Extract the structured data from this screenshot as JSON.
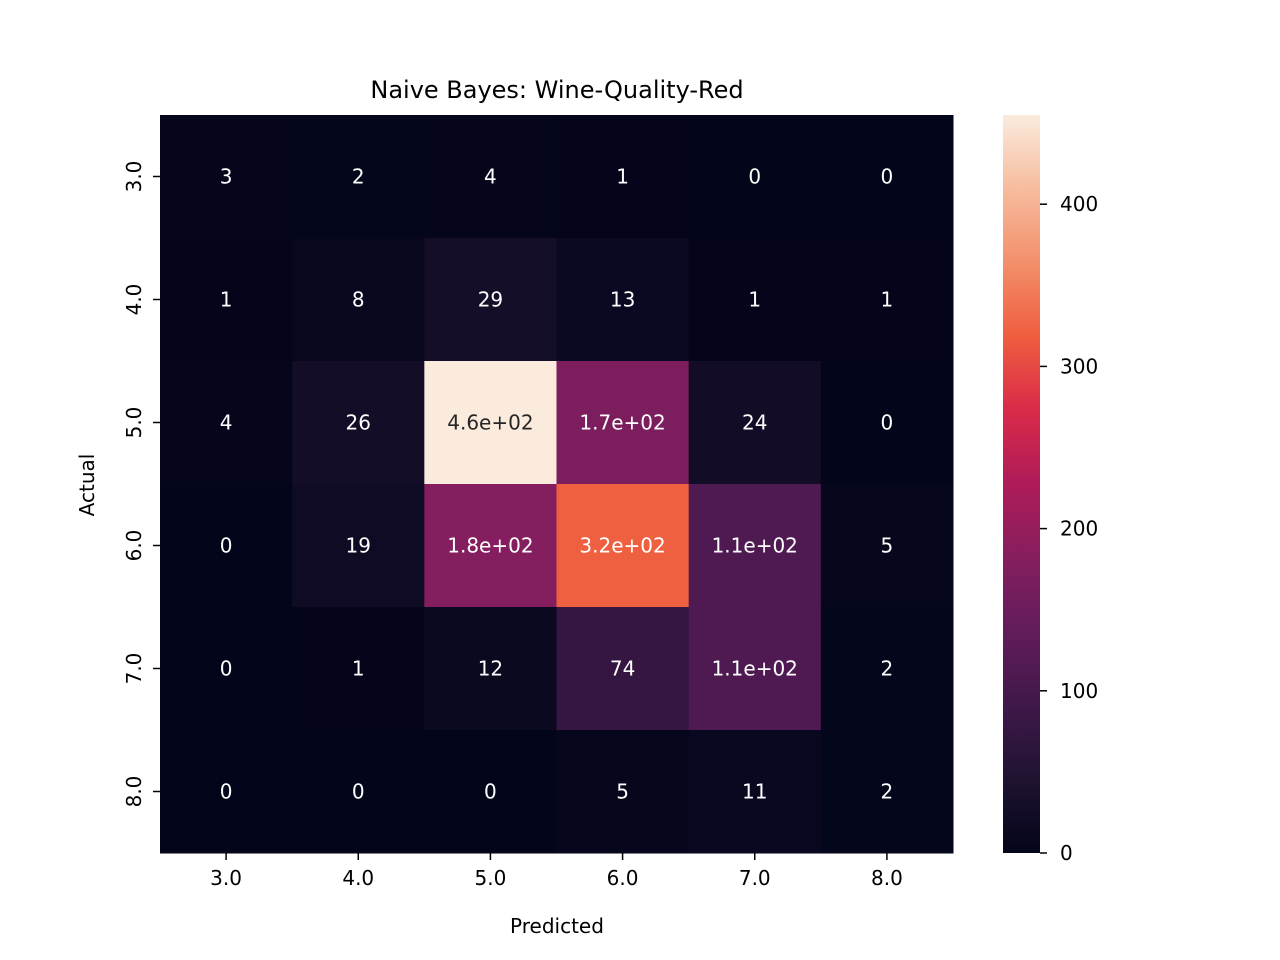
{
  "chart_data": {
    "type": "heatmap",
    "title": "Naive Bayes: Wine-Quality-Red",
    "xlabel": "Predicted",
    "ylabel": "Actual",
    "x_categories": [
      "3.0",
      "4.0",
      "5.0",
      "6.0",
      "7.0",
      "8.0"
    ],
    "y_categories": [
      "3.0",
      "4.0",
      "5.0",
      "6.0",
      "7.0",
      "8.0"
    ],
    "values": [
      [
        3,
        2,
        4,
        1,
        0,
        0
      ],
      [
        1,
        8,
        29,
        13,
        1,
        1
      ],
      [
        4,
        26,
        460,
        170,
        24,
        0
      ],
      [
        0,
        19,
        180,
        320,
        110,
        5
      ],
      [
        0,
        1,
        12,
        74,
        110,
        2
      ],
      [
        0,
        0,
        0,
        5,
        11,
        2
      ]
    ],
    "annotations": [
      [
        "3",
        "2",
        "4",
        "1",
        "0",
        "0"
      ],
      [
        "1",
        "8",
        "29",
        "13",
        "1",
        "1"
      ],
      [
        "4",
        "26",
        "4.6e+02",
        "1.7e+02",
        "24",
        "0"
      ],
      [
        "0",
        "19",
        "1.8e+02",
        "3.2e+02",
        "1.1e+02",
        "5"
      ],
      [
        "0",
        "1",
        "12",
        "74",
        "1.1e+02",
        "2"
      ],
      [
        "0",
        "0",
        "0",
        "5",
        "11",
        "2"
      ]
    ],
    "colorbar": {
      "range": [
        0,
        455
      ],
      "ticks": [
        0,
        100,
        200,
        300,
        400
      ],
      "colormap": "rocket"
    },
    "grid": false
  }
}
